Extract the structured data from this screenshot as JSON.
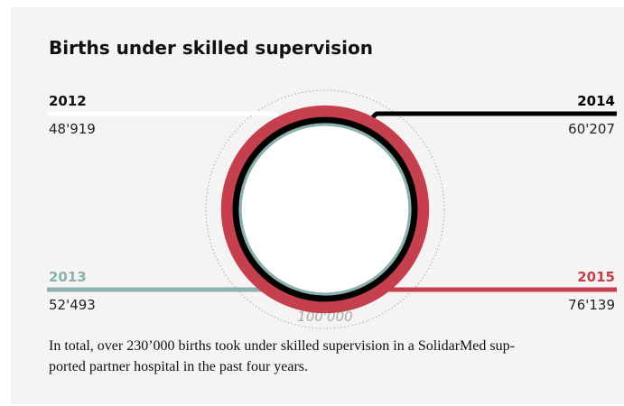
{
  "chart_data": {
    "type": "concentric",
    "title": "Births under skilled supervision",
    "categories": [
      "2012",
      "2013",
      "2014",
      "2015"
    ],
    "values": [
      48919,
      52493,
      60207,
      76139
    ],
    "value_labels": [
      "48'919",
      "52'493",
      "60'207",
      "76'139"
    ],
    "colors": [
      "#ffffff",
      "#8db1af",
      "#000000",
      "#c53f4e"
    ],
    "rlim": [
      0,
      100000
    ],
    "rticks": [
      {
        "value": 100000,
        "label": "100'000"
      }
    ],
    "area_scale": true,
    "note": [
      "In total, over 230’000 births took under skilled supervision in a SolidarMed sup-",
      "ported partner hospital in the past four years."
    ]
  }
}
